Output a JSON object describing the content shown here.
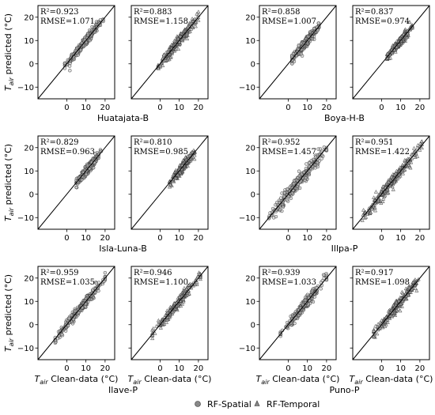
{
  "chart_data": {
    "type": "scatter",
    "axes": {
      "xlim": [
        -15,
        25
      ],
      "ylim": [
        -15,
        25
      ],
      "xticks": [
        0,
        10,
        20
      ],
      "yticks": [
        -10,
        0,
        10,
        20
      ],
      "xlabel_prefix": "T",
      "xlabel_sub": "air",
      "xlabel_suffix": " Clean-data (°C)",
      "ylabel_prefix": "T",
      "ylabel_sub": "air",
      "ylabel_suffix": " predicted (°C)",
      "reference_line": "1:1"
    },
    "legend": {
      "placement": "bottom-center",
      "items": [
        {
          "label": "RF-Spatial",
          "marker": "circle"
        },
        {
          "label": "RF-Temporal",
          "marker": "triangle"
        }
      ]
    },
    "sites": [
      {
        "name": "Huatajata-B",
        "panels": [
          {
            "model": "RF-Spatial",
            "r2_text": "R²=0.923",
            "rmse_text": "RMSE=1.071",
            "r2": 0.923,
            "rmse": 1.071,
            "x_range": [
              -1,
              19
            ]
          },
          {
            "model": "RF-Temporal",
            "r2_text": "R²=0.883",
            "rmse_text": "RMSE=1.158",
            "r2": 0.883,
            "rmse": 1.158,
            "x_range": [
              -1,
              20
            ]
          }
        ]
      },
      {
        "name": "Boya-H-B",
        "panels": [
          {
            "model": "RF-Spatial",
            "r2_text": "R²=0.858",
            "rmse_text": "RMSE=1.007",
            "r2": 0.858,
            "rmse": 1.007,
            "x_range": [
              2,
              16
            ]
          },
          {
            "model": "RF-Temporal",
            "r2_text": "R²=0.837",
            "rmse_text": "RMSE=0.974",
            "r2": 0.837,
            "rmse": 0.974,
            "x_range": [
              3,
              16
            ]
          }
        ]
      },
      {
        "name": "Isla-Luna-B",
        "panels": [
          {
            "model": "RF-Spatial",
            "r2_text": "R²=0.829",
            "rmse_text": "RMSE=0.963",
            "r2": 0.829,
            "rmse": 0.963,
            "x_range": [
              5,
              18
            ]
          },
          {
            "model": "RF-Temporal",
            "r2_text": "R²=0.810",
            "rmse_text": "RMSE=0.985",
            "r2": 0.81,
            "rmse": 0.985,
            "x_range": [
              5,
              18
            ]
          }
        ]
      },
      {
        "name": "Illpa-P",
        "panels": [
          {
            "model": "RF-Spatial",
            "r2_text": "R²=0.952",
            "rmse_text": "RMSE=1.457",
            "r2": 0.952,
            "rmse": 1.457,
            "x_range": [
              -10,
              20
            ]
          },
          {
            "model": "RF-Temporal",
            "r2_text": "R²=0.951",
            "rmse_text": "RMSE=1.422",
            "r2": 0.951,
            "rmse": 1.422,
            "x_range": [
              -10,
              21
            ]
          }
        ]
      },
      {
        "name": "Ilave-P",
        "panels": [
          {
            "model": "RF-Spatial",
            "r2_text": "R²=0.959",
            "rmse_text": "RMSE=1.035",
            "r2": 0.959,
            "rmse": 1.035,
            "x_range": [
              -6,
              20
            ]
          },
          {
            "model": "RF-Temporal",
            "r2_text": "R²=0.946",
            "rmse_text": "RMSE=1.100",
            "r2": 0.946,
            "rmse": 1.1,
            "x_range": [
              -4,
              21
            ]
          }
        ]
      },
      {
        "name": "Puno-P",
        "panels": [
          {
            "model": "RF-Spatial",
            "r2_text": "R²=0.939",
            "rmse_text": "RMSE=1.033",
            "r2": 0.939,
            "rmse": 1.033,
            "x_range": [
              -4,
              20
            ]
          },
          {
            "model": "RF-Temporal",
            "r2_text": "R²=0.917",
            "rmse_text": "RMSE=1.098",
            "r2": 0.917,
            "rmse": 1.098,
            "x_range": [
              -4,
              21
            ]
          }
        ]
      }
    ]
  }
}
